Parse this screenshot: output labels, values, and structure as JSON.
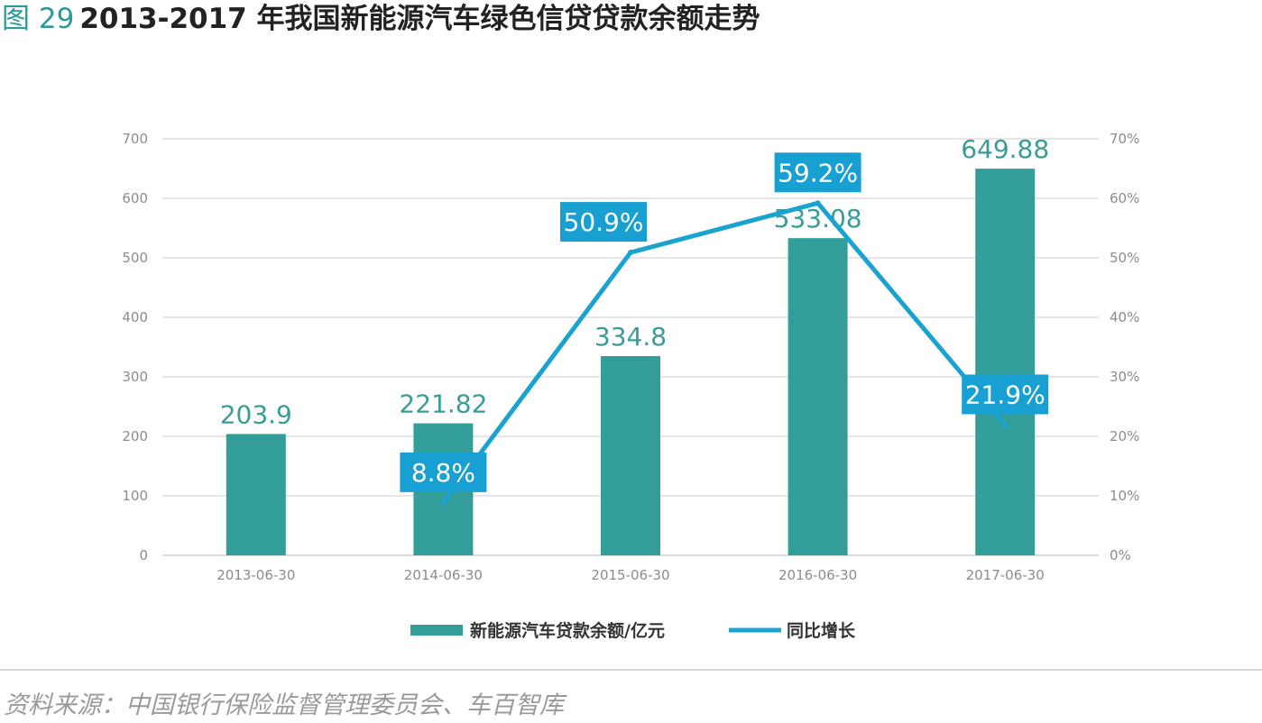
{
  "figure": {
    "label": "图 29",
    "title": "2013-2017 年我国新能源汽车绿色信贷贷款余额走势"
  },
  "source": "资料来源：中国银行保险监督管理委员会、车百智库",
  "colors": {
    "bar": "#339e99",
    "line": "#1aa3cf",
    "bar_label": "#3a9c96",
    "pct_box": "#18a0d2",
    "grid": "#dedede",
    "title_accent": "#2e9a95"
  },
  "chart_data": {
    "type": "bar",
    "title": "2013-2017 年我国新能源汽车绿色信贷贷款余额走势",
    "categories": [
      "2013-06-30",
      "2014-06-30",
      "2015-06-30",
      "2016-06-30",
      "2017-06-30"
    ],
    "series": [
      {
        "name": "新能源汽车贷款余额/亿元",
        "type": "bar",
        "axis": "left",
        "values": [
          203.9,
          221.82,
          334.8,
          533.08,
          649.88
        ],
        "labels": [
          "203.9",
          "221.82",
          "334.8",
          "533.08",
          "649.88"
        ]
      },
      {
        "name": "同比增长",
        "type": "line",
        "axis": "right",
        "values": [
          null,
          8.8,
          50.9,
          59.2,
          21.9
        ],
        "labels": [
          "",
          "8.8%",
          "50.9%",
          "59.2%",
          "21.9%"
        ]
      }
    ],
    "y_left": {
      "ylim": [
        0,
        700
      ],
      "ticks": [
        "0",
        "100",
        "200",
        "300",
        "400",
        "500",
        "600",
        "700"
      ]
    },
    "y_right": {
      "ylim": [
        0,
        70
      ],
      "ticks": [
        "0%",
        "10%",
        "20%",
        "30%",
        "40%",
        "50%",
        "60%",
        "70%"
      ]
    },
    "grid": true,
    "legend": "bottom-center",
    "legend_items": [
      "新能源汽车贷款余额/亿元",
      "同比增长"
    ]
  }
}
